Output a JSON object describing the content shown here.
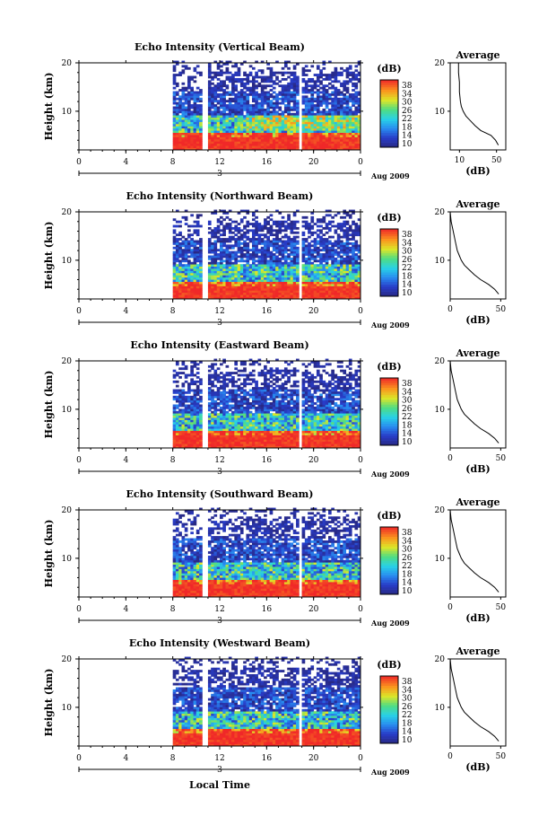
{
  "chart_data": {
    "type": "heatmap",
    "date_label": "Aug 2009",
    "xlabel": "Local Time",
    "ylabel": "Height (km)",
    "xlim": [
      0,
      24
    ],
    "ylim": [
      2,
      20
    ],
    "x_ticks": [
      "0",
      "4",
      "8",
      "12",
      "16",
      "20",
      "0"
    ],
    "date_tick": "3",
    "y_ticks": [
      "20",
      "10"
    ],
    "colorbar": {
      "label": "(dB)",
      "range": [
        10,
        38
      ],
      "ticks": [
        "38",
        "34",
        "30",
        "26",
        "22",
        "18",
        "14",
        "10"
      ]
    },
    "data_start_hour": 8,
    "gaps_hours": [
      [
        10.5,
        11.0
      ],
      [
        18.6,
        19.0
      ]
    ],
    "average_panel": {
      "title": "Average",
      "xlabel": "(dB)",
      "y_ticks": [
        "20",
        "10"
      ]
    },
    "panels": [
      {
        "title": "Echo Intensity (Vertical Beam)",
        "avg_x_ticks": [
          "10",
          "50"
        ],
        "avg_xlim": [
          0,
          60
        ],
        "avg_profile": [
          [
            3,
            52
          ],
          [
            4,
            49
          ],
          [
            5,
            44
          ],
          [
            6,
            33
          ],
          [
            7,
            27
          ],
          [
            8,
            22
          ],
          [
            9,
            17
          ],
          [
            10,
            14
          ],
          [
            11,
            12
          ],
          [
            12,
            11
          ],
          [
            14,
            10
          ],
          [
            16,
            10
          ],
          [
            18,
            9
          ],
          [
            20,
            9
          ]
        ]
      },
      {
        "title": "Echo Intensity (Northward Beam)",
        "avg_x_ticks": [
          "0",
          "50"
        ],
        "avg_xlim": [
          0,
          55
        ],
        "avg_profile": [
          [
            3,
            48
          ],
          [
            4,
            44
          ],
          [
            5,
            38
          ],
          [
            6,
            30
          ],
          [
            7,
            24
          ],
          [
            8,
            19
          ],
          [
            9,
            14
          ],
          [
            10,
            11
          ],
          [
            11,
            9
          ],
          [
            12,
            7
          ],
          [
            14,
            5
          ],
          [
            16,
            3
          ],
          [
            18,
            1
          ],
          [
            20,
            0
          ]
        ]
      },
      {
        "title": "Echo Intensity (Eastward Beam)",
        "avg_x_ticks": [
          "0",
          "50"
        ],
        "avg_xlim": [
          0,
          55
        ],
        "avg_profile": [
          [
            3,
            48
          ],
          [
            4,
            44
          ],
          [
            5,
            38
          ],
          [
            6,
            30
          ],
          [
            7,
            24
          ],
          [
            8,
            19
          ],
          [
            9,
            14
          ],
          [
            10,
            11
          ],
          [
            11,
            9
          ],
          [
            12,
            7
          ],
          [
            14,
            5
          ],
          [
            16,
            3
          ],
          [
            18,
            1
          ],
          [
            20,
            0
          ]
        ]
      },
      {
        "title": "Echo Intensity (Southward Beam)",
        "avg_x_ticks": [
          "0",
          "50"
        ],
        "avg_xlim": [
          0,
          55
        ],
        "avg_profile": [
          [
            3,
            48
          ],
          [
            4,
            44
          ],
          [
            5,
            38
          ],
          [
            6,
            30
          ],
          [
            7,
            24
          ],
          [
            8,
            19
          ],
          [
            9,
            14
          ],
          [
            10,
            11
          ],
          [
            11,
            9
          ],
          [
            12,
            7
          ],
          [
            14,
            5
          ],
          [
            16,
            3
          ],
          [
            18,
            1
          ],
          [
            20,
            0
          ]
        ]
      },
      {
        "title": "Echo Intensity (Westward Beam)",
        "avg_x_ticks": [
          "0",
          "50"
        ],
        "avg_xlim": [
          0,
          55
        ],
        "avg_profile": [
          [
            3,
            48
          ],
          [
            4,
            44
          ],
          [
            5,
            38
          ],
          [
            6,
            30
          ],
          [
            7,
            24
          ],
          [
            8,
            19
          ],
          [
            9,
            14
          ],
          [
            10,
            11
          ],
          [
            11,
            9
          ],
          [
            12,
            7
          ],
          [
            14,
            5
          ],
          [
            16,
            3
          ],
          [
            18,
            1
          ],
          [
            20,
            0
          ]
        ]
      }
    ]
  }
}
